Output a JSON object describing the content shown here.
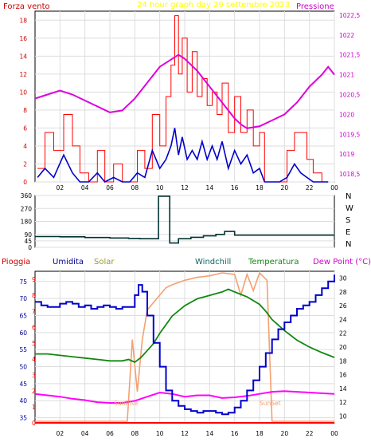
{
  "header": {
    "left": "Forza vento",
    "center": "24 hour graph day   29 settembre 2023",
    "right": "Pressione"
  },
  "wind_dir_labels": [
    "N",
    "W",
    "S",
    "E",
    "N"
  ],
  "legend": {
    "pioggia": "Pioggia",
    "umidita": "Umidita",
    "solar": "Solar",
    "windchill": "Windchill",
    "temperatura": "Temperatura",
    "dewpoint": "Dew Point (°C)"
  },
  "annotations": {
    "sunrise": "SunRise",
    "sunset": "SunSet"
  },
  "colors": {
    "gust": "#ff0000",
    "wind": "#0000cc",
    "pressure": "#dd00dd",
    "direction": "#003333",
    "temperature": "#118811",
    "humidity": "#0000cc",
    "solar": "#f4a070",
    "dewpoint": "#ff00ff",
    "rain": "#ff0000",
    "left_axis": "#cc0000",
    "right_axis": "#cc00cc",
    "grid": "#dddddd"
  },
  "chart_data": [
    {
      "type": "line",
      "title": "24 hour graph day   29 settembre 2023",
      "x_ticks": [
        "02",
        "04",
        "06",
        "08",
        "10",
        "12",
        "14",
        "16",
        "18",
        "20",
        "22",
        "00"
      ],
      "y_left": {
        "label": "Forza vento",
        "ticks": [
          0,
          2,
          4,
          6,
          8,
          10,
          12,
          14,
          16,
          18
        ],
        "range": [
          0,
          19
        ]
      },
      "y_right": {
        "label": "Pressione",
        "ticks": [
          "1018,5",
          "1019",
          "1019,5",
          "1020",
          "1020,5",
          "1021",
          "1021,5",
          "1022",
          "1022,5"
        ],
        "range": [
          1018.3,
          1022.6
        ]
      },
      "series": [
        {
          "color": "red",
          "axis": "left",
          "x": [
            0.2,
            0.8,
            1.5,
            2.3,
            3.0,
            3.6,
            4.3,
            5.0,
            5.6,
            6.3,
            7.0,
            7.6,
            8.2,
            8.8,
            9.4,
            10.0,
            10.5,
            10.9,
            11.2,
            11.5,
            11.8,
            12.2,
            12.6,
            13.0,
            13.4,
            13.8,
            14.2,
            14.6,
            15.0,
            15.5,
            16.0,
            16.5,
            17.0,
            17.5,
            18.0,
            18.4,
            19.0,
            19.6,
            20.2,
            20.8,
            21.3,
            21.8,
            22.3,
            23.0,
            23.5
          ],
          "values": [
            1.5,
            5.5,
            3.5,
            7.5,
            4,
            1,
            0,
            3.5,
            0,
            2,
            0,
            0,
            3.5,
            1.5,
            7.5,
            4,
            9.5,
            13,
            18.5,
            12,
            16,
            10,
            14.5,
            9.5,
            11.5,
            8.5,
            10,
            7.5,
            11,
            5.5,
            9.5,
            5.5,
            8,
            4,
            5.5,
            0,
            0,
            0,
            3.5,
            5.5,
            5.5,
            2.5,
            1,
            0,
            0
          ]
        },
        {
          "color": "blue",
          "axis": "left",
          "x": [
            0.2,
            0.8,
            1.5,
            2.3,
            3.0,
            3.6,
            4.3,
            5.0,
            5.6,
            6.3,
            7.0,
            7.6,
            8.2,
            8.8,
            9.4,
            10.0,
            10.5,
            10.9,
            11.2,
            11.5,
            11.8,
            12.2,
            12.6,
            13.0,
            13.4,
            13.8,
            14.2,
            14.6,
            15.0,
            15.5,
            16.0,
            16.5,
            17.0,
            17.5,
            18.0,
            18.4,
            19.0,
            19.6,
            20.2,
            20.8,
            21.3,
            21.8,
            22.3,
            23.0,
            23.5
          ],
          "values": [
            0.5,
            1.5,
            0.5,
            3,
            1,
            0,
            0,
            1,
            0,
            0.5,
            0,
            0,
            1,
            0.5,
            3.5,
            1.5,
            2.5,
            4,
            6,
            3,
            5,
            2.5,
            3.5,
            2.5,
            4.5,
            2.5,
            4,
            2.5,
            4.5,
            1.5,
            3.5,
            2,
            3,
            1,
            1.5,
            0,
            0,
            0,
            0.5,
            2,
            1,
            0.5,
            0,
            0,
            0
          ]
        },
        {
          "color": "magenta",
          "axis": "right",
          "x": [
            0,
            1,
            2,
            3,
            4,
            5,
            6,
            7,
            8,
            9,
            10,
            11,
            11.5,
            12,
            13,
            14,
            15,
            15.5,
            16,
            16.5,
            17,
            18,
            19,
            20,
            21,
            22,
            23,
            23.5,
            24
          ],
          "values": [
            1020.4,
            1020.5,
            1020.6,
            1020.5,
            1020.35,
            1020.2,
            1020.05,
            1020.1,
            1020.4,
            1020.8,
            1021.2,
            1021.4,
            1021.5,
            1021.4,
            1021.1,
            1020.7,
            1020.3,
            1020.1,
            1019.9,
            1019.75,
            1019.65,
            1019.7,
            1019.85,
            1020.0,
            1020.3,
            1020.7,
            1021.0,
            1021.2,
            1021.0
          ]
        }
      ]
    },
    {
      "type": "line",
      "title": "",
      "x_ticks": [],
      "y": {
        "label": "",
        "ticks": [
          0,
          45,
          90,
          180,
          270,
          360
        ],
        "range": [
          0,
          360
        ]
      },
      "series": [
        {
          "color": "dark slate",
          "x": [
            0,
            2,
            4,
            6,
            7.5,
            8.4,
            9.6,
            9.9,
            10.4,
            10.8,
            11.5,
            12.5,
            13.5,
            14.5,
            15.2,
            16,
            18,
            20,
            22,
            24
          ],
          "values": [
            75,
            73,
            68,
            65,
            62,
            60,
            60,
            355,
            355,
            30,
            60,
            70,
            80,
            90,
            110,
            85,
            85,
            85,
            85,
            85
          ]
        }
      ]
    },
    {
      "type": "line",
      "title": "",
      "x_ticks": [
        "02",
        "04",
        "06",
        "08",
        "10",
        "12",
        "14",
        "16",
        "18",
        "20",
        "22",
        "00"
      ],
      "y_left": {
        "label": "Umidita",
        "ticks": [
          35,
          40,
          45,
          50,
          55,
          60,
          65,
          70,
          75
        ],
        "range": [
          33.5,
          78
        ]
      },
      "y_left_outer": {
        "label": "Pioggia",
        "ticks": [
          0,
          1,
          2,
          3,
          4,
          5,
          6,
          7,
          8,
          9
        ],
        "range": [
          0,
          9.5
        ]
      },
      "y_right": {
        "label": "Dew Point (°C)",
        "ticks": [
          10,
          12,
          14,
          16,
          18,
          20,
          22,
          24,
          26,
          28,
          30
        ],
        "range": [
          9,
          31
        ]
      },
      "series": [
        {
          "color": "blue",
          "axis": "left",
          "x": [
            0,
            0.5,
            1,
            1.5,
            2,
            2.5,
            3,
            3.5,
            4,
            4.5,
            5,
            5.5,
            6,
            6.5,
            7,
            7.5,
            8,
            8.3,
            8.6,
            9,
            9.5,
            10,
            10.5,
            11,
            11.5,
            12,
            12.5,
            13,
            13.5,
            14,
            14.5,
            15,
            15.5,
            16,
            16.5,
            17,
            17.5,
            18,
            18.5,
            19,
            19.5,
            20,
            20.5,
            21,
            21.5,
            22,
            22.5,
            23,
            23.5,
            24
          ],
          "values": [
            69,
            68,
            67.5,
            67.5,
            68.5,
            69,
            68.5,
            67.5,
            68,
            67,
            67.5,
            68,
            67.5,
            67,
            67.5,
            67.5,
            71,
            74,
            72,
            65,
            57,
            50,
            43,
            40,
            38.5,
            37.5,
            37,
            36.5,
            37,
            37,
            36.5,
            36,
            36.5,
            38,
            40,
            43,
            46,
            50,
            54,
            58,
            61,
            63,
            65,
            67,
            68,
            69,
            71,
            73,
            75,
            77
          ]
        },
        {
          "color": "orange",
          "axis": "solar",
          "x": [
            0,
            7.4,
            7.8,
            8.2,
            8.6,
            9,
            9.5,
            10,
            10.5,
            11,
            12,
            13,
            14,
            15,
            16,
            16.5,
            17,
            17.5,
            18,
            18.6,
            19,
            24
          ],
          "values": [
            0,
            0,
            0.55,
            0.2,
            0.55,
            0.75,
            0.8,
            0.85,
            0.9,
            0.92,
            0.95,
            0.97,
            0.98,
            1.0,
            0.99,
            0.85,
            0.99,
            0.88,
            1.0,
            0.95,
            0,
            0
          ]
        },
        {
          "color": "green",
          "axis": "right",
          "x": [
            0,
            1,
            2,
            3,
            4,
            5,
            6,
            7,
            7.5,
            8,
            8.5,
            9,
            9.5,
            10,
            11,
            12,
            13,
            14,
            15,
            15.5,
            16,
            17,
            18,
            18.5,
            19,
            20,
            21,
            22,
            23,
            24
          ],
          "values": [
            19,
            19,
            18.8,
            18.6,
            18.4,
            18.2,
            18.0,
            18.0,
            18.2,
            17.8,
            18.5,
            19.5,
            20.5,
            22.0,
            24.5,
            26.0,
            27.0,
            27.5,
            28.0,
            28.4,
            28.0,
            27.3,
            26.2,
            25.2,
            24.0,
            22.4,
            21.0,
            20.0,
            19.2,
            18.5
          ]
        },
        {
          "color": "magenta",
          "axis": "right",
          "x": [
            0,
            1,
            2,
            3,
            4,
            5,
            6,
            7,
            8,
            9,
            10,
            11,
            12,
            13,
            14,
            15,
            16,
            17,
            18,
            19,
            20,
            21,
            22,
            23,
            24
          ],
          "values": [
            13.2,
            13.0,
            12.8,
            12.5,
            12.3,
            12.0,
            11.9,
            11.9,
            12.2,
            12.8,
            13.4,
            13.2,
            12.8,
            13.0,
            13.0,
            12.6,
            12.7,
            12.9,
            13.2,
            13.5,
            13.6,
            13.5,
            13.4,
            13.3,
            13.2
          ]
        },
        {
          "color": "red",
          "axis": "outer",
          "x": [
            0,
            24
          ],
          "values": [
            0,
            0
          ]
        }
      ]
    }
  ]
}
